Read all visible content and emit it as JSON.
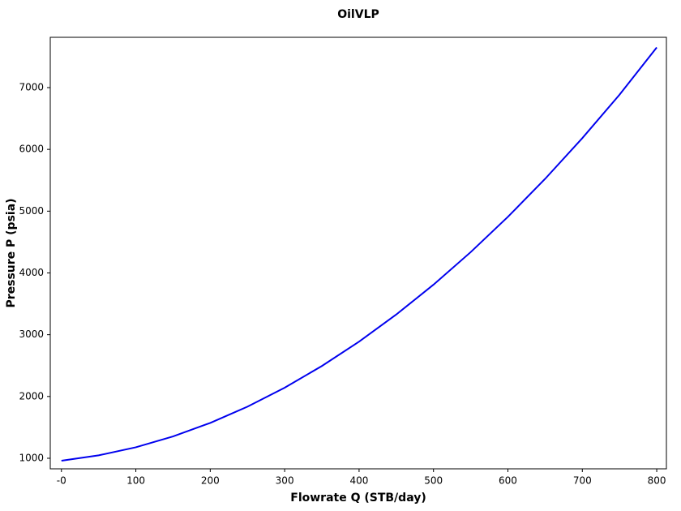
{
  "chart_data": {
    "type": "line",
    "title": "OilVLP",
    "x_label": "Flowrate Q (STB/day)",
    "y_label": "Pressure P (psia)",
    "x": [
      0,
      50,
      100,
      150,
      200,
      250,
      300,
      350,
      400,
      450,
      500,
      550,
      600,
      650,
      700,
      750,
      800
    ],
    "series": [
      {
        "color": "#0000ee",
        "values": [
          960,
          1047,
          1178,
          1353,
          1572,
          1835,
          2142,
          2493,
          2888,
          3327,
          3810,
          4337,
          4908,
          5523,
          6182,
          6885,
          7650
        ]
      }
    ],
    "xlim": [
      -15,
      813
    ],
    "ylim": [
      829,
      7814
    ],
    "xticks": [
      {
        "value": 0,
        "label": "-0"
      },
      100,
      200,
      300,
      400,
      500,
      600,
      700,
      800
    ],
    "yticks": [
      1000,
      2000,
      3000,
      4000,
      5000,
      6000,
      7000
    ],
    "grid": false
  }
}
